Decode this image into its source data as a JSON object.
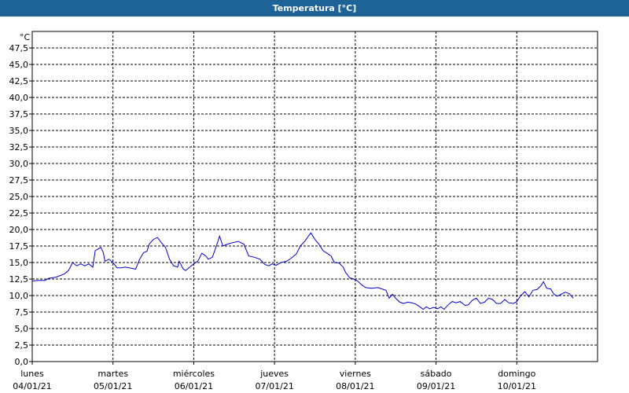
{
  "window": {
    "title": "Temperatura [°C]"
  },
  "chart_data": {
    "type": "line",
    "title": "Temperatura [°C]",
    "unit_label": "°C",
    "ylim": [
      0,
      50
    ],
    "y_ticks": [
      "0,0",
      "2,5",
      "5,0",
      "7,5",
      "10,0",
      "12,5",
      "15,0",
      "17,5",
      "20,0",
      "22,5",
      "25,0",
      "27,5",
      "30,0",
      "32,5",
      "35,0",
      "37,5",
      "40,0",
      "42,5",
      "45,0",
      "47,5"
    ],
    "y_tick_values": [
      0,
      2.5,
      5,
      7.5,
      10,
      12.5,
      15,
      17.5,
      20,
      22.5,
      25,
      27.5,
      30,
      32.5,
      35,
      37.5,
      40,
      42.5,
      45,
      47.5
    ],
    "x_days": [
      {
        "weekday": "lunes",
        "date": "04/01/21"
      },
      {
        "weekday": "martes",
        "date": "05/01/21"
      },
      {
        "weekday": "miércoles",
        "date": "06/01/21"
      },
      {
        "weekday": "jueves",
        "date": "07/01/21"
      },
      {
        "weekday": "viernes",
        "date": "08/01/21"
      },
      {
        "weekday": "sábado",
        "date": "09/01/21"
      },
      {
        "weekday": "domingo",
        "date": "10/01/21"
      }
    ],
    "xlim_days": [
      0,
      7
    ],
    "grid": true,
    "series": [
      {
        "color": "#0000cc",
        "points": [
          [
            0.0,
            12.2
          ],
          [
            0.08,
            12.3
          ],
          [
            0.16,
            12.3
          ],
          [
            0.2,
            12.6
          ],
          [
            0.3,
            12.8
          ],
          [
            0.4,
            13.3
          ],
          [
            0.45,
            13.8
          ],
          [
            0.5,
            15.0
          ],
          [
            0.55,
            14.5
          ],
          [
            0.6,
            14.8
          ],
          [
            0.65,
            14.5
          ],
          [
            0.7,
            14.8
          ],
          [
            0.75,
            14.3
          ],
          [
            0.78,
            16.8
          ],
          [
            0.85,
            17.3
          ],
          [
            0.88,
            16.5
          ],
          [
            0.9,
            15.2
          ],
          [
            0.95,
            15.5
          ],
          [
            1.0,
            15.0
          ],
          [
            1.05,
            14.2
          ],
          [
            1.1,
            14.2
          ],
          [
            1.15,
            14.3
          ],
          [
            1.2,
            14.2
          ],
          [
            1.28,
            14.0
          ],
          [
            1.33,
            15.5
          ],
          [
            1.38,
            16.5
          ],
          [
            1.42,
            16.7
          ],
          [
            1.45,
            17.8
          ],
          [
            1.5,
            18.5
          ],
          [
            1.55,
            18.8
          ],
          [
            1.6,
            18.0
          ],
          [
            1.65,
            17.3
          ],
          [
            1.7,
            15.5
          ],
          [
            1.75,
            14.5
          ],
          [
            1.8,
            14.3
          ],
          [
            1.82,
            15.2
          ],
          [
            1.87,
            14.0
          ],
          [
            1.9,
            13.8
          ],
          [
            1.95,
            14.3
          ],
          [
            2.0,
            14.8
          ],
          [
            2.05,
            15.2
          ],
          [
            2.1,
            16.4
          ],
          [
            2.15,
            16.0
          ],
          [
            2.18,
            15.5
          ],
          [
            2.23,
            15.8
          ],
          [
            2.28,
            17.5
          ],
          [
            2.32,
            19.0
          ],
          [
            2.36,
            17.5
          ],
          [
            2.42,
            17.8
          ],
          [
            2.48,
            18.0
          ],
          [
            2.55,
            18.2
          ],
          [
            2.62,
            17.8
          ],
          [
            2.68,
            16.0
          ],
          [
            2.75,
            15.8
          ],
          [
            2.82,
            15.5
          ],
          [
            2.88,
            14.7
          ],
          [
            2.93,
            14.5
          ],
          [
            2.97,
            14.8
          ],
          [
            3.02,
            14.6
          ],
          [
            3.08,
            15.0
          ],
          [
            3.15,
            15.2
          ],
          [
            3.2,
            15.6
          ],
          [
            3.27,
            16.3
          ],
          [
            3.32,
            17.5
          ],
          [
            3.38,
            18.3
          ],
          [
            3.42,
            19.0
          ],
          [
            3.45,
            19.5
          ],
          [
            3.5,
            18.5
          ],
          [
            3.55,
            17.8
          ],
          [
            3.6,
            16.8
          ],
          [
            3.65,
            16.4
          ],
          [
            3.7,
            16.0
          ],
          [
            3.74,
            15.0
          ],
          [
            3.8,
            14.9
          ],
          [
            3.85,
            14.3
          ],
          [
            3.88,
            13.5
          ],
          [
            3.93,
            12.7
          ],
          [
            3.98,
            12.5
          ],
          [
            4.03,
            12.2
          ],
          [
            4.08,
            11.6
          ],
          [
            4.13,
            11.2
          ],
          [
            4.2,
            11.1
          ],
          [
            4.28,
            11.2
          ],
          [
            4.33,
            11.0
          ],
          [
            4.38,
            10.8
          ],
          [
            4.42,
            9.6
          ],
          [
            4.46,
            10.2
          ],
          [
            4.5,
            9.6
          ],
          [
            4.55,
            9.0
          ],
          [
            4.6,
            8.8
          ],
          [
            4.65,
            9.0
          ],
          [
            4.7,
            8.9
          ],
          [
            4.75,
            8.7
          ],
          [
            4.8,
            8.3
          ],
          [
            4.84,
            7.9
          ],
          [
            4.88,
            8.3
          ],
          [
            4.92,
            8.0
          ],
          [
            4.97,
            8.2
          ],
          [
            5.02,
            8.0
          ],
          [
            5.06,
            8.3
          ],
          [
            5.1,
            7.9
          ],
          [
            5.15,
            8.6
          ],
          [
            5.2,
            9.1
          ],
          [
            5.25,
            8.9
          ],
          [
            5.3,
            9.1
          ],
          [
            5.36,
            8.5
          ],
          [
            5.4,
            8.6
          ],
          [
            5.45,
            9.3
          ],
          [
            5.5,
            9.6
          ],
          [
            5.55,
            8.8
          ],
          [
            5.6,
            9.0
          ],
          [
            5.65,
            9.6
          ],
          [
            5.7,
            9.4
          ],
          [
            5.75,
            8.8
          ],
          [
            5.8,
            8.8
          ],
          [
            5.85,
            9.4
          ],
          [
            5.9,
            8.9
          ],
          [
            5.96,
            8.8
          ],
          [
            6.0,
            9.1
          ],
          [
            6.05,
            10.0
          ],
          [
            6.1,
            10.6
          ],
          [
            6.15,
            9.8
          ],
          [
            6.2,
            10.8
          ],
          [
            6.25,
            10.9
          ],
          [
            6.3,
            11.5
          ],
          [
            6.33,
            12.1
          ],
          [
            6.37,
            11.1
          ],
          [
            6.42,
            11.0
          ],
          [
            6.46,
            10.2
          ],
          [
            6.5,
            9.9
          ],
          [
            6.55,
            10.2
          ],
          [
            6.6,
            10.5
          ],
          [
            6.65,
            10.3
          ],
          [
            6.7,
            9.6
          ]
        ]
      }
    ]
  }
}
